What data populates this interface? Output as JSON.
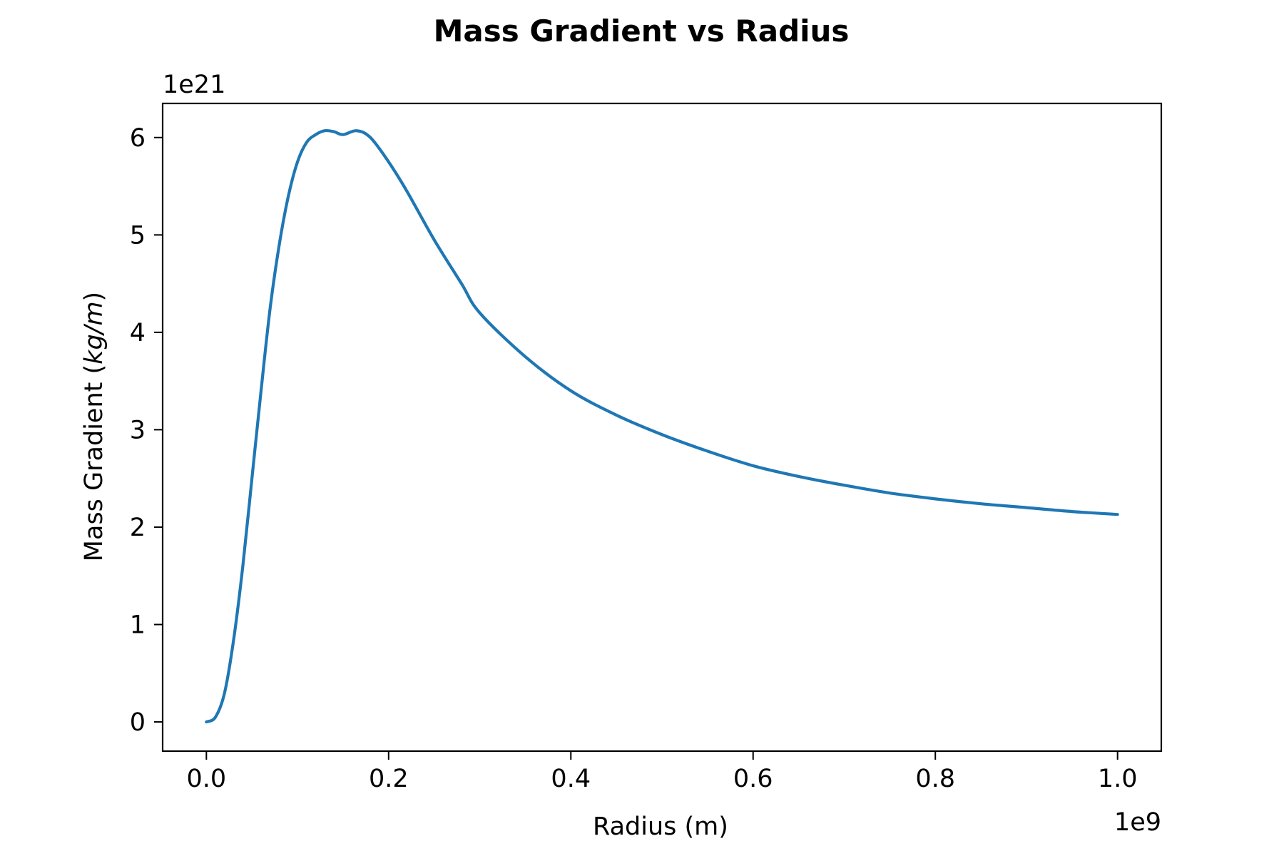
{
  "chart_data": {
    "type": "line",
    "title": "Mass Gradient vs Radius",
    "xlabel": "Radius (m)",
    "ylabel_main": "Mass Gradient (",
    "ylabel_unit": "kg/m",
    "ylabel_close": ")",
    "x_offset_text": "1e9",
    "y_offset_text": "1e21",
    "xlim": [
      -0.048,
      1.048
    ],
    "ylim": [
      -0.3,
      6.35
    ],
    "x_ticks": [
      0.0,
      0.2,
      0.4,
      0.6,
      0.8,
      1.0
    ],
    "x_tick_labels": [
      "0.0",
      "0.2",
      "0.4",
      "0.6",
      "0.8",
      "1.0"
    ],
    "y_ticks": [
      0,
      1,
      2,
      3,
      4,
      5,
      6
    ],
    "y_tick_labels": [
      "0",
      "1",
      "2",
      "3",
      "4",
      "5",
      "6"
    ],
    "grid": false,
    "series": [
      {
        "color": "#1f77b4",
        "x": [
          0.0,
          0.01,
          0.02,
          0.03,
          0.04,
          0.05,
          0.06,
          0.07,
          0.08,
          0.09,
          0.1,
          0.11,
          0.12,
          0.13,
          0.14,
          0.15,
          0.165,
          0.18,
          0.2,
          0.22,
          0.25,
          0.28,
          0.3,
          0.35,
          0.4,
          0.45,
          0.5,
          0.55,
          0.6,
          0.65,
          0.7,
          0.75,
          0.8,
          0.85,
          0.9,
          0.95,
          1.0
        ],
        "y": [
          0.0,
          0.05,
          0.3,
          0.85,
          1.6,
          2.5,
          3.4,
          4.25,
          4.9,
          5.4,
          5.75,
          5.95,
          6.03,
          6.07,
          6.06,
          6.03,
          6.07,
          6.0,
          5.75,
          5.45,
          4.95,
          4.5,
          4.2,
          3.75,
          3.4,
          3.15,
          2.95,
          2.78,
          2.63,
          2.52,
          2.43,
          2.35,
          2.29,
          2.24,
          2.2,
          2.16,
          2.13
        ]
      }
    ]
  }
}
